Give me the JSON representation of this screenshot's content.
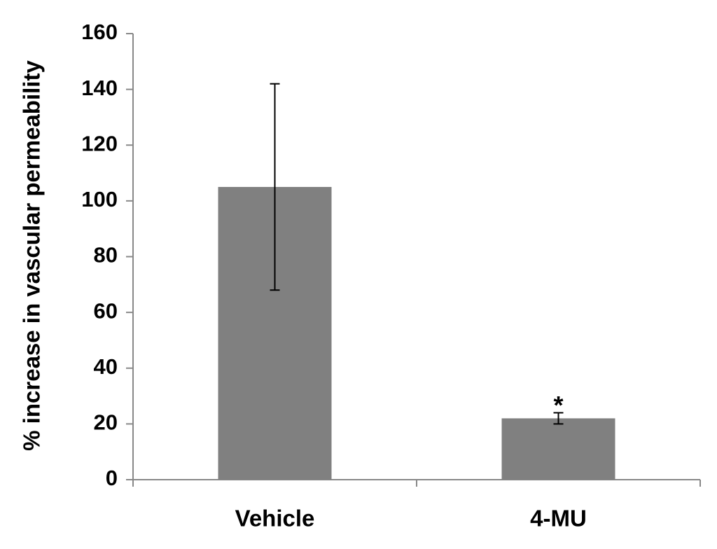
{
  "chart_data": {
    "type": "bar",
    "y_label": "% increase in vascular permeability",
    "categories": [
      "Vehicle",
      "4-MU"
    ],
    "values": [
      105,
      22
    ],
    "errors": [
      37,
      2
    ],
    "color": "#808080",
    "annotation": "*",
    "ylim": [
      0,
      160
    ],
    "yticks": [
      0,
      20,
      40,
      60,
      80,
      100,
      120,
      140,
      160
    ],
    "grid": false
  }
}
